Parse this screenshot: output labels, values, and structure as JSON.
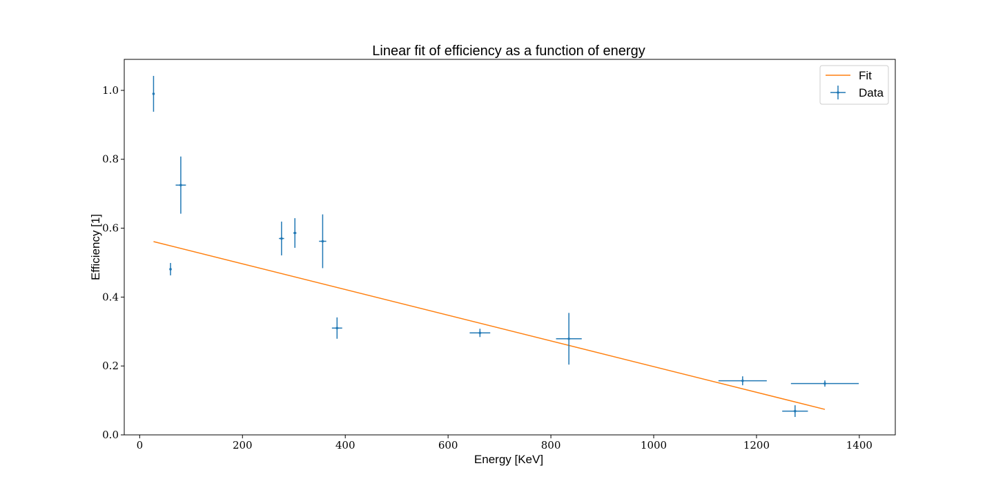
{
  "chart_data": {
    "type": "scatter",
    "title": "Linear fit of efficiency as a function of energy",
    "xlabel": "Energy [KeV]",
    "ylabel": "Efficiency [1]",
    "xlim": [
      -30,
      1470
    ],
    "ylim": [
      0.0,
      1.09
    ],
    "xticks": [
      0,
      200,
      400,
      600,
      800,
      1000,
      1200,
      1400
    ],
    "yticks": [
      0.0,
      0.2,
      0.4,
      0.6,
      0.8,
      1.0
    ],
    "xtick_labels": [
      "0",
      "200",
      "400",
      "600",
      "800",
      "1000",
      "1200",
      "1400"
    ],
    "ytick_labels": [
      "0.0",
      "0.2",
      "0.4",
      "0.6",
      "0.8",
      "1.0"
    ],
    "grid": false,
    "legend_position": "top-right",
    "series": [
      {
        "name": "Fit",
        "kind": "line",
        "color": "#ff7f0e",
        "x": [
          27,
          1333
        ],
        "y": [
          0.561,
          0.074
        ]
      },
      {
        "name": "Data",
        "kind": "errorbar",
        "color": "#1f77b4",
        "points": [
          {
            "x": 27,
            "y": 0.99,
            "xerr": 0,
            "yerr": 0.052
          },
          {
            "x": 60,
            "y": 0.481,
            "xerr": 0,
            "yerr": 0.018
          },
          {
            "x": 80,
            "y": 0.725,
            "xerr": 10,
            "yerr": 0.083
          },
          {
            "x": 276,
            "y": 0.57,
            "xerr": 5,
            "yerr": 0.049
          },
          {
            "x": 302,
            "y": 0.586,
            "xerr": 3,
            "yerr": 0.043
          },
          {
            "x": 356,
            "y": 0.562,
            "xerr": 7,
            "yerr": 0.078
          },
          {
            "x": 384,
            "y": 0.31,
            "xerr": 10,
            "yerr": 0.031
          },
          {
            "x": 662,
            "y": 0.296,
            "xerr": 20,
            "yerr": 0.012
          },
          {
            "x": 835,
            "y": 0.279,
            "xerr": 25,
            "yerr": 0.075
          },
          {
            "x": 1173,
            "y": 0.157,
            "xerr": 47,
            "yerr": 0.013
          },
          {
            "x": 1275,
            "y": 0.069,
            "xerr": 25,
            "yerr": 0.017
          },
          {
            "x": 1333,
            "y": 0.149,
            "xerr": 66,
            "yerr": 0.009
          }
        ]
      }
    ]
  }
}
